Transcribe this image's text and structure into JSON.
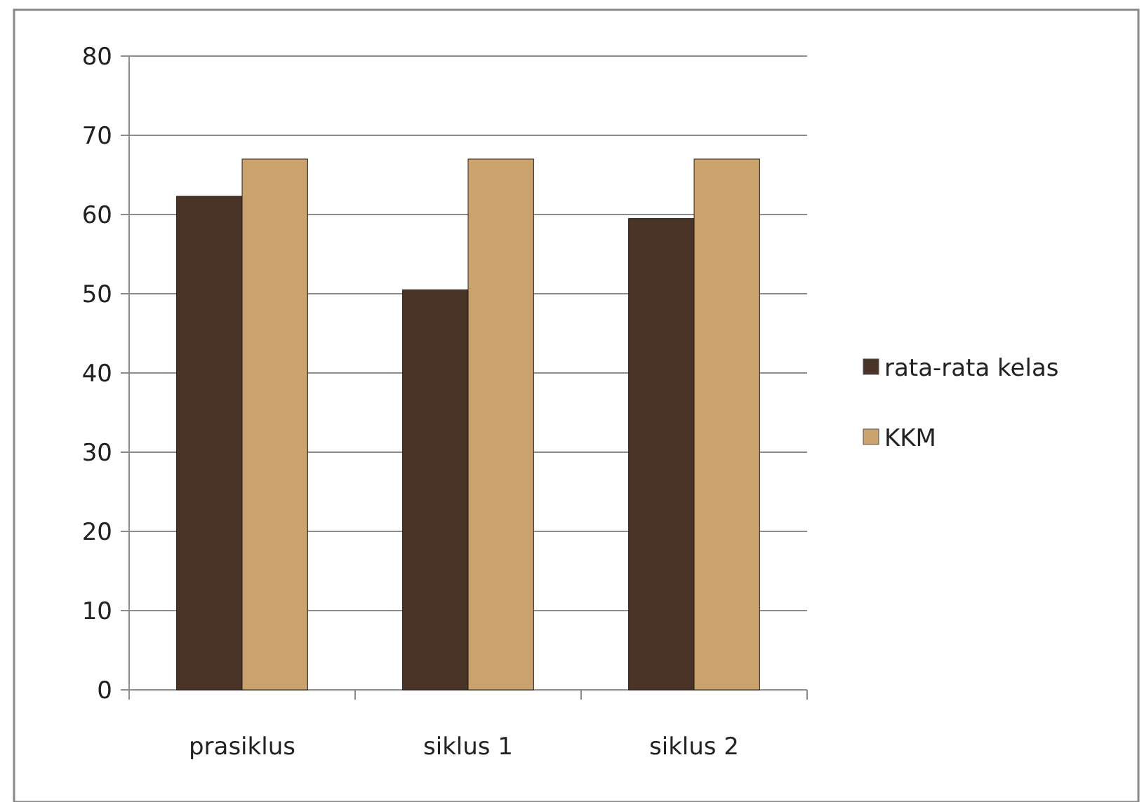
{
  "chart_data": {
    "type": "bar",
    "categories": [
      "prasiklus",
      "siklus 1",
      "siklus 2"
    ],
    "series": [
      {
        "name": "rata-rata kelas",
        "color": "#4a3428",
        "values": [
          62.3,
          50.5,
          59.5
        ]
      },
      {
        "name": "KKM",
        "color": "#c9a26e",
        "values": [
          67,
          67,
          67
        ]
      }
    ],
    "ylim": [
      0,
      80
    ],
    "yticks": [
      0,
      10,
      20,
      30,
      40,
      50,
      60,
      70,
      80
    ],
    "grid": "y",
    "legend": "right"
  }
}
